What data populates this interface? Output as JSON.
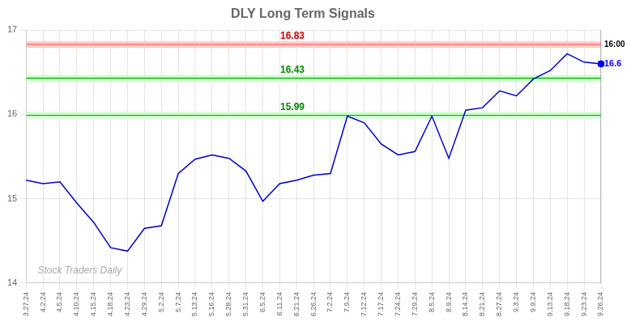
{
  "chart_data": {
    "type": "line",
    "title": "DLY Long Term Signals",
    "categories": [
      "3.27.24",
      "4.2.24",
      "4.5.24",
      "4.10.24",
      "4.15.24",
      "4.18.24",
      "4.23.24",
      "4.29.24",
      "5.2.24",
      "5.7.24",
      "5.13.24",
      "5.16.24",
      "5.28.24",
      "5.31.24",
      "6.5.24",
      "6.11.24",
      "6.21.24",
      "6.26.24",
      "7.2.24",
      "7.9.24",
      "7.12.24",
      "7.17.24",
      "7.24.24",
      "7.29.24",
      "8.5.24",
      "8.9.24",
      "8.14.24",
      "8.21.24",
      "8.27.24",
      "9.3.24",
      "9.9.24",
      "9.13.24",
      "9.18.24",
      "9.23.24",
      "9.26.24"
    ],
    "values": [
      15.22,
      15.18,
      15.2,
      14.95,
      14.72,
      14.42,
      14.38,
      14.65,
      14.68,
      15.3,
      15.47,
      15.52,
      15.48,
      15.33,
      14.97,
      15.18,
      15.22,
      15.28,
      15.3,
      15.98,
      15.9,
      15.65,
      15.52,
      15.56,
      15.98,
      15.48,
      16.05,
      16.08,
      16.28,
      16.22,
      16.42,
      16.52,
      16.72,
      16.62,
      16.6
    ],
    "color": "#0000cc",
    "background_color": "#ffffff",
    "ylim": [
      14,
      17
    ],
    "yticks": [
      14,
      15,
      16,
      17
    ],
    "grid": true,
    "levels": [
      {
        "value": 16.83,
        "label": "16.83",
        "color": "#ff6666",
        "band_color": "#ffcccc",
        "label_color": "#cc0000"
      },
      {
        "value": 16.43,
        "label": "16.43",
        "color": "#00aa00",
        "band_color": "#ccffcc",
        "label_color": "#008800"
      },
      {
        "value": 15.99,
        "label": "15.99",
        "color": "#00aa00",
        "band_color": "#ccffcc",
        "label_color": "#008800"
      }
    ],
    "last_price": {
      "value": 16.6,
      "label": "16.6",
      "color": "#0000ff"
    },
    "last_time": {
      "value": 16.83,
      "label": "16:00"
    },
    "watermark": "Stock Traders Daily",
    "watermark_color": "#aaaaaa"
  }
}
